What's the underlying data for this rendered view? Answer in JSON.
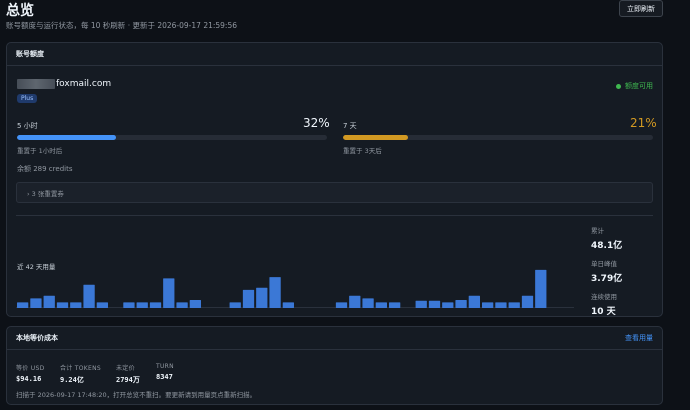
{
  "header": {
    "title": "总览",
    "subtitle": "账号额度与运行状态，每 10 秒刷新 · 更新于 2026-09-17 21:59:56",
    "refresh_label": "立即刷新"
  },
  "quota_card": {
    "title": "账号额度",
    "email_visible": "foxmail.com",
    "plan": "Plus",
    "status": "额度可用",
    "five_hour": {
      "label": "5 小时",
      "percent_text": "32%",
      "percent": 32,
      "reset": "重置于 1小时后",
      "color": "#4493f8"
    },
    "seven_day": {
      "label": "7 天",
      "percent_text": "21%",
      "percent": 21,
      "reset": "重置于 3天后",
      "color": "#d29922"
    },
    "balance": "余额 289 credits",
    "resets_toggle": "› 3 张重置券",
    "usage_label": "近 42 天用量",
    "stats": {
      "total_label": "累计",
      "total_value": "48.1亿",
      "peak_label": "单日峰值",
      "peak_value": "3.79亿",
      "streak_label": "连续使用",
      "streak_value": "10 天"
    }
  },
  "chart_data": {
    "type": "bar",
    "values": [
      0.24,
      0.41,
      0.52,
      0.24,
      0.24,
      0.99,
      0.24,
      0,
      0.24,
      0.24,
      0.24,
      1.26,
      0.24,
      0.34,
      0,
      0,
      0.24,
      0.77,
      0.86,
      1.31,
      0.24,
      0,
      0,
      0,
      0.24,
      0.52,
      0.41,
      0.24,
      0.24,
      0,
      0.31,
      0.31,
      0.24,
      0.34,
      0.52,
      0.24,
      0.24,
      0.24,
      0.52,
      1.62,
      0,
      0
    ],
    "ylim": [
      0,
      1.7
    ]
  },
  "cost_card": {
    "title": "本地等价成本",
    "link": "查看用量",
    "items": [
      {
        "label": "等价 USD",
        "value": "$94.16"
      },
      {
        "label": "合计 TOKENS",
        "value": "9.24亿"
      },
      {
        "label": "未定价",
        "value": "2794万"
      },
      {
        "label": "TURN",
        "value": "8347"
      }
    ],
    "note": "扫描于 2026-09-17 17:48:20，打开总览不重扫。要更新请到用量页点重新扫描。"
  },
  "colors": {
    "bar": "#3b78d6",
    "accent": "#4493f8",
    "warn": "#d29922",
    "ok": "#3fb950"
  }
}
